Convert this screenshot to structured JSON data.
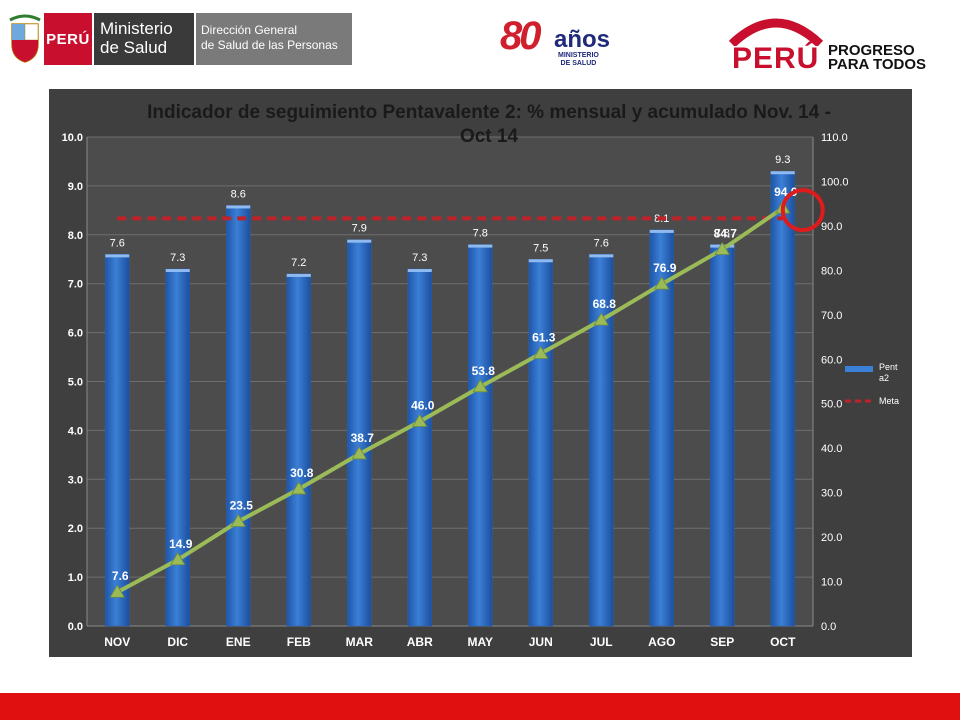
{
  "header": {
    "minsa": {
      "peru": "PERÚ",
      "ministerio_line1": "Ministerio",
      "ministerio_line2": "de Salud",
      "direccion_line1": "Dirección General",
      "direccion_line2": "de Salud de las Personas"
    },
    "anniversary": {
      "number": "80",
      "word": "años",
      "sub_line1": "MINISTERIO",
      "sub_line2": "DE SALUD"
    },
    "slogan": {
      "country": "PERÚ",
      "line1": "PROGRESO",
      "line2": "PARA TODOS"
    }
  },
  "colors": {
    "bar": "#3b7fd6",
    "line": "#9bbb59",
    "meta": "#c0222a",
    "panel": "#3f3f3f",
    "plot": "#4c4c4c",
    "highlight_circle": "#e01b1b",
    "footer": "#e01010"
  },
  "chart_data": {
    "type": "bar",
    "title": "Indicador de seguimiento Pentavalente 2: % mensual y acumulado Nov. 14 - Oct 14",
    "title_line1": "Indicador de seguimiento Pentavalente 2: % mensual y acumulado Nov. 14 -",
    "title_line2": "Oct 14",
    "categories": [
      "NOV",
      "DIC",
      "ENE",
      "FEB",
      "MAR",
      "ABR",
      "MAY",
      "JUN",
      "JUL",
      "AGO",
      "SEP",
      "OCT"
    ],
    "series": [
      {
        "name": "Penta2",
        "legend_line1": "Pent",
        "legend_line2": "a2",
        "type": "bar",
        "axis": "left",
        "values": [
          7.6,
          7.3,
          8.6,
          7.2,
          7.9,
          7.3,
          7.8,
          7.5,
          7.6,
          8.1,
          7.8,
          9.3
        ]
      },
      {
        "type": "line",
        "axis": "right",
        "marker": "triangle",
        "values": [
          7.6,
          14.9,
          23.5,
          30.8,
          38.7,
          46.0,
          53.8,
          61.3,
          68.8,
          76.9,
          84.7,
          94.0
        ]
      },
      {
        "name": "Meta",
        "type": "dashed-line",
        "axis": "right",
        "value": 91.7,
        "from": "NOV",
        "to": "OCT"
      }
    ],
    "y_left": {
      "ylim": [
        0,
        10
      ],
      "ticks": [
        "0.0",
        "1.0",
        "2.0",
        "3.0",
        "4.0",
        "5.0",
        "6.0",
        "7.0",
        "8.0",
        "9.0",
        "10.0"
      ]
    },
    "y_right": {
      "ylim": [
        0,
        110
      ],
      "ticks": [
        "0.0",
        "10.0",
        "20.0",
        "30.0",
        "40.0",
        "50.0",
        "60.0",
        "70.0",
        "80.0",
        "90.0",
        "100.0",
        "110.0"
      ]
    },
    "bar_labels": [
      "7.6",
      "7.3",
      "8.6",
      "7.2",
      "7.9",
      "7.3",
      "7.8",
      "7.5",
      "7.6",
      "8.1",
      "7.8",
      "9.3"
    ],
    "line_labels": [
      "7.6",
      "14.9",
      "23.5",
      "30.8",
      "38.7",
      "46.0",
      "53.8",
      "61.3",
      "68.8",
      "76.9",
      "84.7",
      "94.0"
    ],
    "highlight": {
      "category": "OCT",
      "series": "line"
    },
    "grid": true,
    "legend": "right"
  }
}
